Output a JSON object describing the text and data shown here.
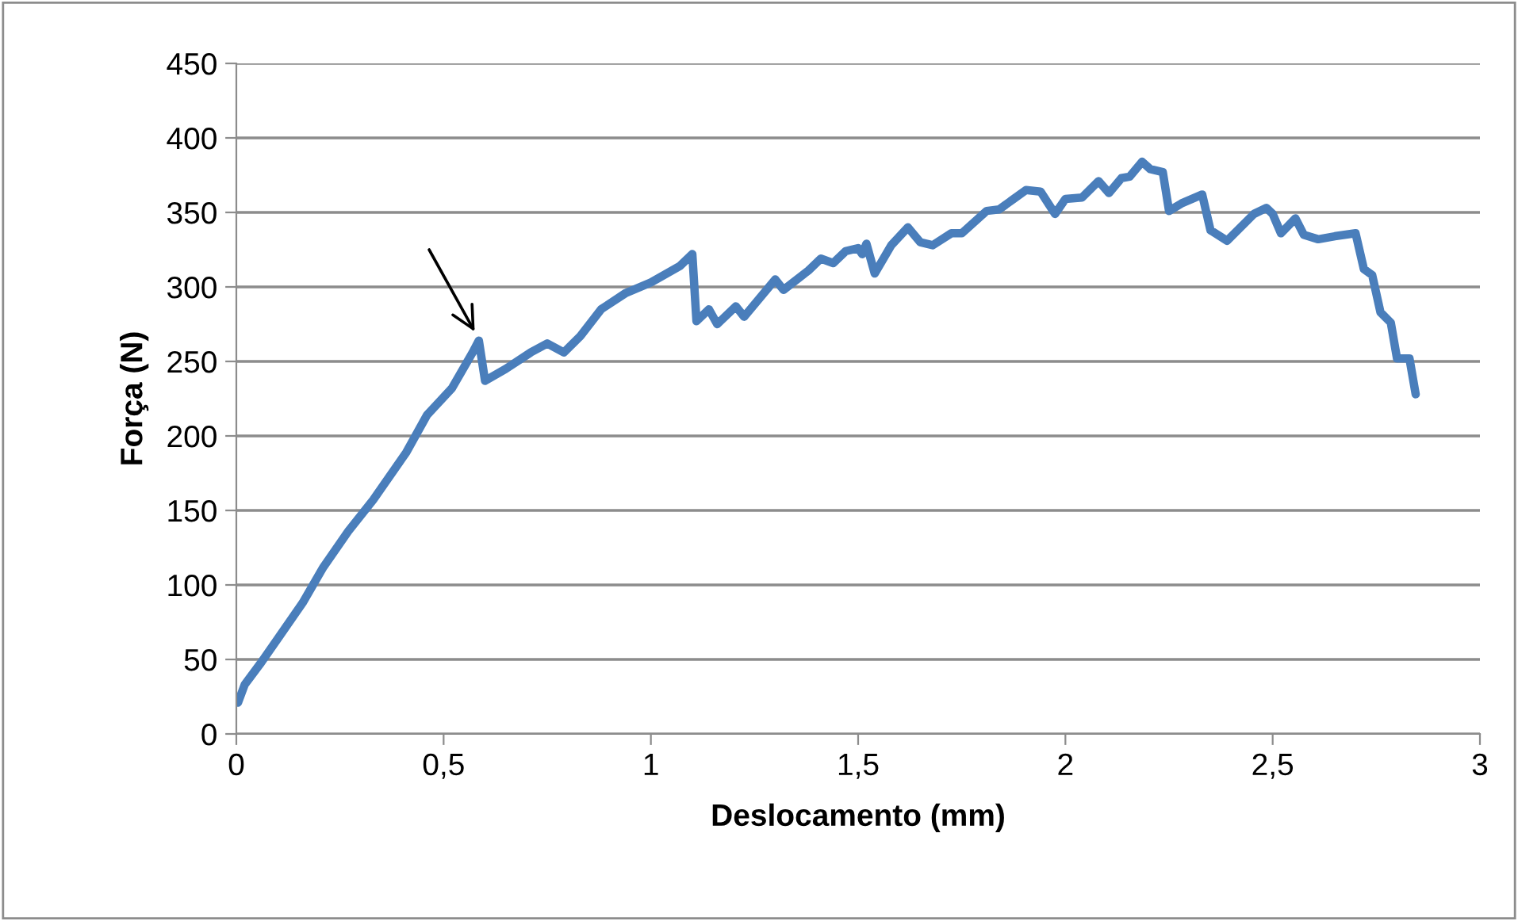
{
  "chart_data": {
    "type": "line",
    "xlabel": "Deslocamento (mm)",
    "ylabel": "Força (N)",
    "xlim": [
      0,
      3
    ],
    "xticks": [
      0,
      {
        "value": 0.5,
        "label": "0,5"
      },
      1,
      {
        "value": 1.5,
        "label": "1,5"
      },
      2,
      {
        "value": 2.5,
        "label": "2,5"
      },
      3
    ],
    "ylim": [
      0,
      450
    ],
    "yticks": [
      0,
      50,
      100,
      150,
      200,
      250,
      300,
      350,
      400,
      450
    ],
    "grid": "y",
    "legend": false,
    "marker": "none",
    "line_style": "solid",
    "series": [
      {
        "color": "#4a7ebb",
        "x": [
          0.004,
          0.02,
          0.06,
          0.1,
          0.16,
          0.21,
          0.27,
          0.33,
          0.41,
          0.46,
          0.52,
          0.57,
          0.585,
          0.6,
          0.65,
          0.71,
          0.75,
          0.79,
          0.83,
          0.88,
          0.94,
          1.0,
          1.07,
          1.1,
          1.11,
          1.14,
          1.16,
          1.205,
          1.225,
          1.3,
          1.32,
          1.38,
          1.41,
          1.44,
          1.47,
          1.5,
          1.51,
          1.52,
          1.54,
          1.58,
          1.62,
          1.65,
          1.68,
          1.725,
          1.75,
          1.81,
          1.84,
          1.905,
          1.94,
          1.975,
          2.0,
          2.04,
          2.08,
          2.105,
          2.135,
          2.155,
          2.185,
          2.205,
          2.235,
          2.25,
          2.28,
          2.33,
          2.35,
          2.39,
          2.455,
          2.485,
          2.5,
          2.52,
          2.555,
          2.575,
          2.61,
          2.65,
          2.7,
          2.72,
          2.74,
          2.76,
          2.785,
          2.8,
          2.83,
          2.845
        ],
        "values": [
          21,
          33,
          48,
          64,
          88,
          112,
          136,
          157,
          189,
          214,
          232,
          256,
          264,
          237,
          245,
          256,
          262,
          256,
          267,
          285,
          296,
          303,
          314,
          322,
          277,
          285,
          275,
          287,
          280,
          305,
          298,
          311,
          319,
          316,
          324,
          326,
          322,
          329,
          309,
          328,
          340,
          330,
          328,
          336,
          336,
          351,
          352,
          365,
          364,
          349,
          359,
          360,
          371,
          363,
          373,
          374,
          384,
          379,
          377,
          351,
          356,
          362,
          338,
          331,
          349,
          353,
          349,
          336,
          346,
          335,
          332,
          334,
          336,
          312,
          308,
          283,
          276,
          252,
          252,
          228
        ]
      }
    ]
  }
}
